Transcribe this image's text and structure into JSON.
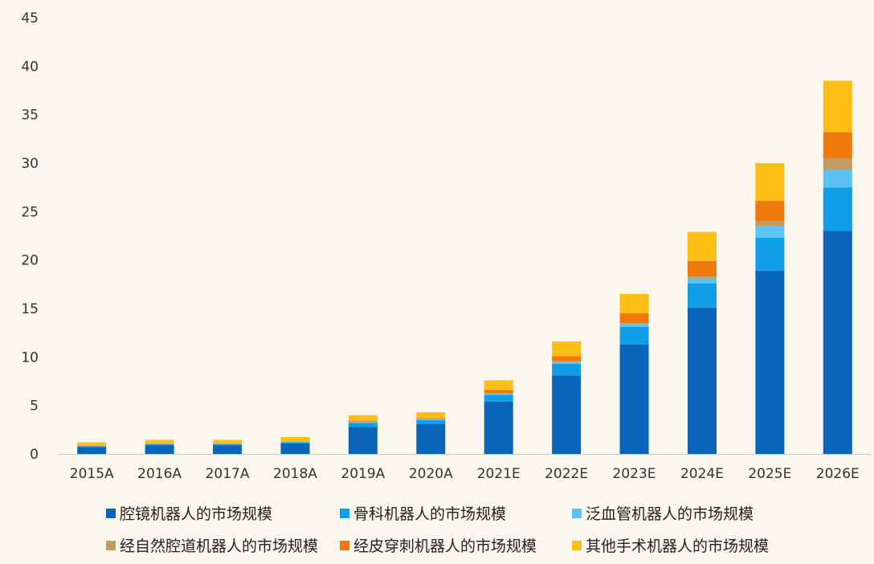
{
  "chart_data": {
    "type": "bar",
    "stacked": true,
    "title": "",
    "xlabel": "",
    "ylabel": "",
    "ylim": [
      0,
      45
    ],
    "yticks": [
      0,
      5,
      10,
      15,
      20,
      25,
      30,
      35,
      40,
      45
    ],
    "grid": false,
    "legend_position": "bottom",
    "categories": [
      "2015A",
      "2016A",
      "2017A",
      "2018A",
      "2019A",
      "2020A",
      "2021E",
      "2022E",
      "2023E",
      "2024E",
      "2025E",
      "2026E"
    ],
    "series": [
      {
        "name": "腔镜机器人的市场规模",
        "color": "#0a64b8",
        "values": [
          0.7,
          0.9,
          0.9,
          1.1,
          2.8,
          3.1,
          5.4,
          8.1,
          11.3,
          15.1,
          18.9,
          23.0
        ]
      },
      {
        "name": "骨科机器人的市场规模",
        "color": "#119ee8",
        "values": [
          0.1,
          0.1,
          0.1,
          0.1,
          0.4,
          0.4,
          0.7,
          1.2,
          1.8,
          2.5,
          3.4,
          4.5
        ]
      },
      {
        "name": "泛血管机器人的市场规模",
        "color": "#5cc2f2",
        "values": [
          0.05,
          0.05,
          0.05,
          0.05,
          0.1,
          0.1,
          0.1,
          0.2,
          0.3,
          0.5,
          1.2,
          1.8
        ]
      },
      {
        "name": "经自然腔道机器人的市场规模",
        "color": "#c09b62",
        "values": [
          0.02,
          0.02,
          0.02,
          0.02,
          0.05,
          0.05,
          0.1,
          0.1,
          0.1,
          0.2,
          0.5,
          1.2
        ]
      },
      {
        "name": "经皮穿刺机器人的市场规模",
        "color": "#ee7a0e",
        "values": [
          0.03,
          0.03,
          0.03,
          0.03,
          0.05,
          0.05,
          0.3,
          0.5,
          1.0,
          1.6,
          2.1,
          2.7
        ]
      },
      {
        "name": "其他手术机器人的市场规模",
        "color": "#fdbe18",
        "values": [
          0.3,
          0.35,
          0.35,
          0.45,
          0.6,
          0.6,
          1.0,
          1.5,
          2.0,
          3.0,
          3.9,
          5.3
        ]
      }
    ]
  }
}
